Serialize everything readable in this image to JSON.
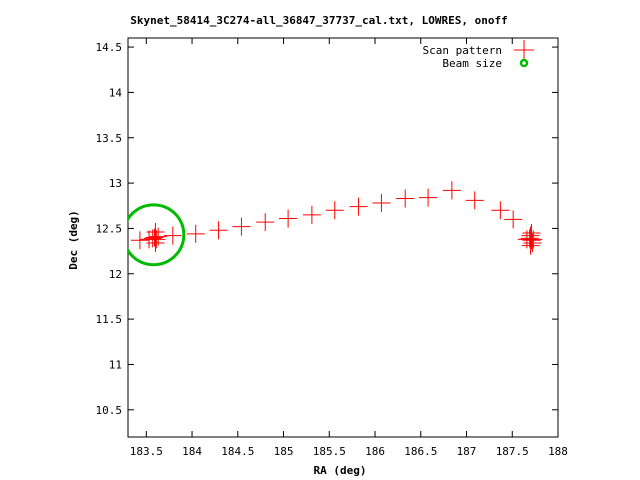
{
  "chart_data": {
    "type": "scatter",
    "title": "Skynet_58414_3C274-all_36847_37737_cal.txt, LOWRES, onoff",
    "xlabel": "RA (deg)",
    "ylabel": "Dec (deg)",
    "xlim": [
      183.3,
      188
    ],
    "ylim": [
      10.2,
      14.6
    ],
    "x_ticks": [
      "183.5",
      "184",
      "184.5",
      "185",
      "185.5",
      "186",
      "186.5",
      "187",
      "187.5",
      "188"
    ],
    "y_ticks": [
      "10.5",
      "11",
      "11.5",
      "12",
      "12.5",
      "13",
      "13.5",
      "14",
      "14.5"
    ],
    "grid": false,
    "legend_position": "top-right",
    "series": [
      {
        "name": "Scan pattern",
        "color": "#ff0000",
        "marker": "plus",
        "points": [
          {
            "x": 183.43,
            "y": 12.37
          },
          {
            "x": 183.53,
            "y": 12.38
          },
          {
            "x": 183.57,
            "y": 12.39
          },
          {
            "x": 183.59,
            "y": 12.4
          },
          {
            "x": 183.61,
            "y": 12.38
          },
          {
            "x": 183.63,
            "y": 12.41
          },
          {
            "x": 183.6,
            "y": 12.34
          },
          {
            "x": 183.6,
            "y": 12.46
          },
          {
            "x": 183.79,
            "y": 12.42
          },
          {
            "x": 184.04,
            "y": 12.44
          },
          {
            "x": 184.29,
            "y": 12.48
          },
          {
            "x": 184.54,
            "y": 12.52
          },
          {
            "x": 184.8,
            "y": 12.57
          },
          {
            "x": 185.05,
            "y": 12.61
          },
          {
            "x": 185.31,
            "y": 12.65
          },
          {
            "x": 185.56,
            "y": 12.7
          },
          {
            "x": 185.82,
            "y": 12.74
          },
          {
            "x": 186.07,
            "y": 12.78
          },
          {
            "x": 186.33,
            "y": 12.83
          },
          {
            "x": 186.58,
            "y": 12.84
          },
          {
            "x": 186.84,
            "y": 12.92
          },
          {
            "x": 187.09,
            "y": 12.81
          },
          {
            "x": 187.37,
            "y": 12.7
          },
          {
            "x": 187.51,
            "y": 12.6
          },
          {
            "x": 187.66,
            "y": 12.38
          },
          {
            "x": 187.69,
            "y": 12.39
          },
          {
            "x": 187.71,
            "y": 12.37
          },
          {
            "x": 187.73,
            "y": 12.38
          },
          {
            "x": 187.7,
            "y": 12.31
          },
          {
            "x": 187.71,
            "y": 12.45
          },
          {
            "x": 187.72,
            "y": 12.34
          },
          {
            "x": 187.7,
            "y": 12.42
          }
        ]
      },
      {
        "name": "Beam size",
        "color": "#00bb00",
        "marker": "circle",
        "center": {
          "x": 183.58,
          "y": 12.43
        },
        "radius_deg": 0.33
      }
    ]
  }
}
